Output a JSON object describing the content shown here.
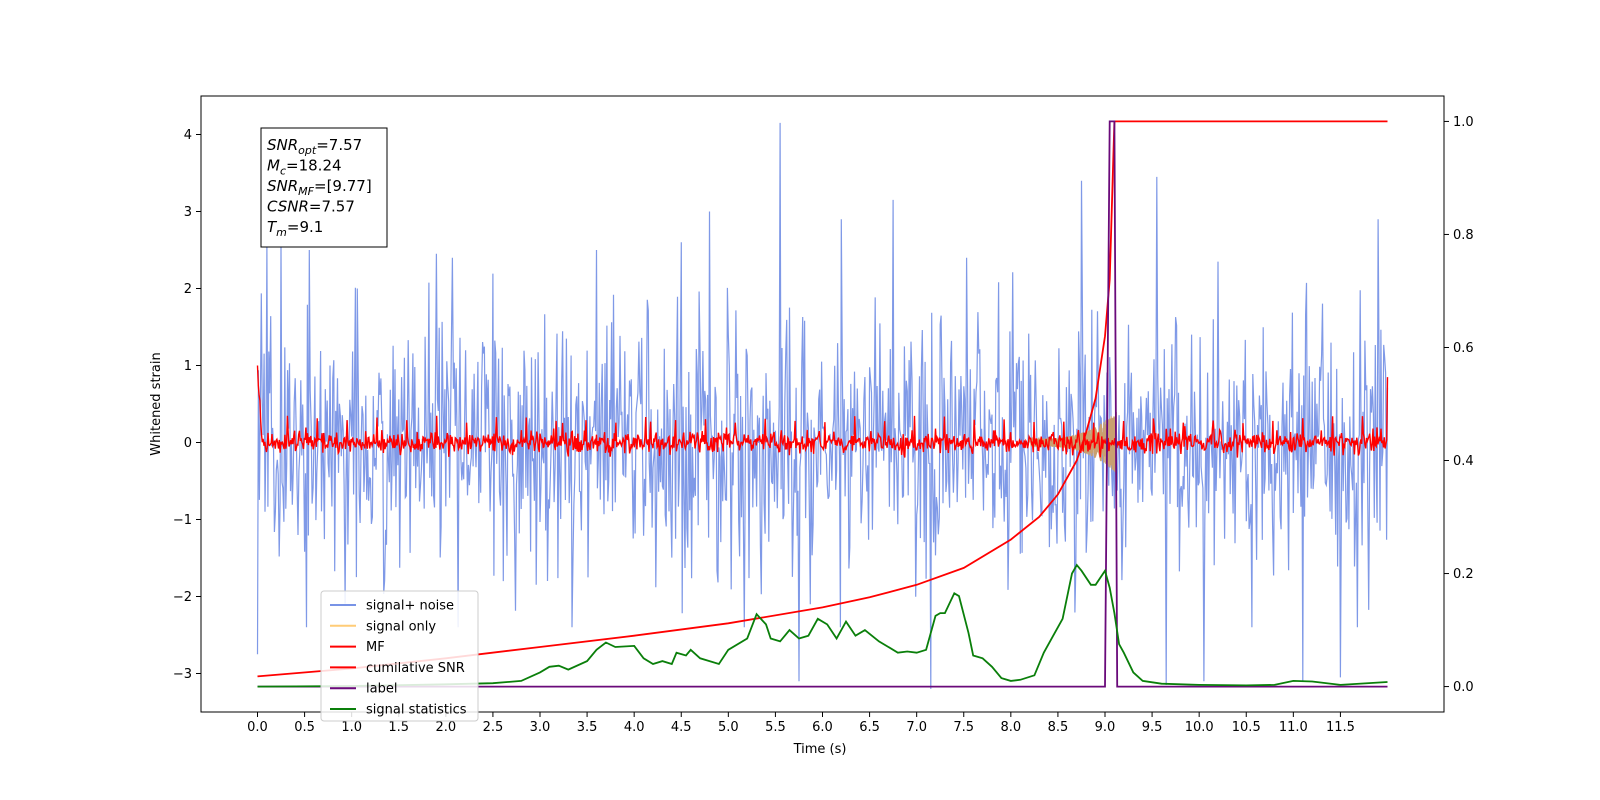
{
  "chart_data": {
    "type": "line",
    "xlabel": "Time (s)",
    "ylabel": "Whitened strain",
    "xlim": [
      -0.6,
      12.6
    ],
    "ylim": [
      -3.5,
      4.5
    ],
    "y2lim": [
      -0.045,
      1.045
    ],
    "x_ticks": [
      0.0,
      0.5,
      1.0,
      1.5,
      2.0,
      2.5,
      3.0,
      3.5,
      4.0,
      4.5,
      5.0,
      5.5,
      6.0,
      6.5,
      7.0,
      7.5,
      8.0,
      8.5,
      9.0,
      9.5,
      10.0,
      10.5,
      11.0,
      11.5
    ],
    "x_tick_labels": [
      "0.0",
      "0.5",
      "1.0",
      "1.5",
      "2.0",
      "2.5",
      "3.0",
      "3.5",
      "4.0",
      "4.5",
      "5.0",
      "5.5",
      "6.0",
      "6.5",
      "7.0",
      "7.5",
      "8.0",
      "8.5",
      "9.0",
      "9.5",
      "10.0",
      "10.5",
      "11.0",
      "11.5"
    ],
    "y_ticks": [
      -3,
      -2,
      -1,
      0,
      1,
      2,
      3,
      4
    ],
    "y_tick_labels": [
      "−3",
      "−2",
      "−1",
      "0",
      "1",
      "2",
      "3",
      "4"
    ],
    "y2_ticks": [
      0.0,
      0.2,
      0.4,
      0.6,
      0.8,
      1.0
    ],
    "y2_tick_labels": [
      "0.0",
      "0.2",
      "0.4",
      "0.6",
      "0.8",
      "1.0"
    ],
    "legend_position": "lower-left",
    "legend": [
      {
        "name": "signal+ noise",
        "color": "#7893e6"
      },
      {
        "name": "signal only",
        "color": "#ffcc77"
      },
      {
        "name": "MF",
        "color": "#ff0000"
      },
      {
        "name": "cumilative SNR",
        "color": "#ff0000"
      },
      {
        "name": "label",
        "color": "#6a0a7a"
      },
      {
        "name": "signal statistics",
        "color": "#0a7f0a"
      }
    ],
    "annotation_lines": [
      {
        "sym": "SNR",
        "sub": "opt",
        "value": "=7.57"
      },
      {
        "sym": "M",
        "sub": "c",
        "value": "=18.24"
      },
      {
        "sym": "SNR",
        "sub": "MF",
        "value": "=[9.77]"
      },
      {
        "sym": "CSNR",
        "sub": "",
        "value": "=7.57"
      },
      {
        "sym": "T",
        "sub": "m",
        "value": "=9.1"
      }
    ],
    "series": [
      {
        "name": "signal+ noise",
        "axis": "left",
        "color": "#7893e6",
        "spikes": [
          {
            "x": 0.0,
            "y": -2.75
          },
          {
            "x": 0.1,
            "y": 2.55
          },
          {
            "x": 0.25,
            "y": 2.6
          },
          {
            "x": 0.55,
            "y": 2.5
          },
          {
            "x": 1.9,
            "y": 2.45
          },
          {
            "x": 3.6,
            "y": 2.5
          },
          {
            "x": 4.5,
            "y": 2.6
          },
          {
            "x": 4.8,
            "y": 3.0
          },
          {
            "x": 5.55,
            "y": 4.15
          },
          {
            "x": 5.75,
            "y": -3.1
          },
          {
            "x": 6.2,
            "y": 2.9
          },
          {
            "x": 6.75,
            "y": 3.15
          },
          {
            "x": 7.15,
            "y": -3.2
          },
          {
            "x": 8.75,
            "y": 3.4
          },
          {
            "x": 9.55,
            "y": 3.45
          },
          {
            "x": 9.65,
            "y": -3.15
          },
          {
            "x": 10.2,
            "y": 2.35
          },
          {
            "x": 10.05,
            "y": -3.1
          },
          {
            "x": 11.1,
            "y": -3.1
          },
          {
            "x": 11.5,
            "y": -3.05
          },
          {
            "x": 11.9,
            "y": 2.9
          }
        ]
      },
      {
        "name": "MF",
        "axis": "left",
        "color": "#ff0000",
        "start_value": 1.0,
        "end_value": 0.85
      },
      {
        "name": "cumilative SNR",
        "axis": "right",
        "color": "#ff0000",
        "x": [
          0.0,
          1.0,
          2.0,
          3.0,
          4.0,
          5.0,
          6.0,
          6.5,
          7.0,
          7.5,
          8.0,
          8.3,
          8.5,
          8.7,
          8.8,
          8.9,
          9.0,
          9.05,
          9.1,
          12.0
        ],
        "y": [
          0.018,
          0.032,
          0.05,
          0.07,
          0.09,
          0.112,
          0.14,
          0.158,
          0.18,
          0.21,
          0.26,
          0.3,
          0.34,
          0.4,
          0.45,
          0.51,
          0.62,
          0.72,
          1.0,
          1.0
        ]
      },
      {
        "name": "label",
        "axis": "right",
        "color": "#6a0a7a",
        "x": [
          0.0,
          9.0,
          9.05,
          9.1,
          9.13,
          12.0
        ],
        "y": [
          0.0,
          0.0,
          1.0,
          1.0,
          0.0,
          0.0
        ]
      },
      {
        "name": "signal statistics",
        "axis": "right",
        "color": "#0a7f0a",
        "x": [
          0.0,
          1.0,
          2.0,
          2.5,
          2.8,
          3.0,
          3.1,
          3.2,
          3.3,
          3.5,
          3.6,
          3.7,
          3.8,
          4.0,
          4.1,
          4.2,
          4.3,
          4.4,
          4.45,
          4.55,
          4.6,
          4.7,
          4.8,
          4.9,
          5.0,
          5.2,
          5.3,
          5.4,
          5.45,
          5.55,
          5.65,
          5.75,
          5.85,
          5.95,
          6.05,
          6.15,
          6.25,
          6.35,
          6.45,
          6.6,
          6.7,
          6.8,
          6.9,
          7.0,
          7.1,
          7.2,
          7.25,
          7.3,
          7.4,
          7.45,
          7.55,
          7.6,
          7.7,
          7.8,
          7.9,
          8.0,
          8.1,
          8.25,
          8.35,
          8.45,
          8.55,
          8.65,
          8.7,
          8.75,
          8.85,
          8.9,
          9.0,
          9.05,
          9.1,
          9.15,
          9.2,
          9.3,
          9.4,
          9.6,
          10.0,
          10.5,
          10.8,
          11.0,
          11.2,
          11.5,
          12.0
        ],
        "y": [
          0.0,
          0.001,
          0.004,
          0.006,
          0.01,
          0.025,
          0.035,
          0.037,
          0.03,
          0.045,
          0.065,
          0.078,
          0.07,
          0.072,
          0.05,
          0.04,
          0.045,
          0.04,
          0.06,
          0.055,
          0.065,
          0.05,
          0.045,
          0.04,
          0.065,
          0.085,
          0.128,
          0.11,
          0.085,
          0.08,
          0.1,
          0.085,
          0.09,
          0.12,
          0.11,
          0.085,
          0.115,
          0.09,
          0.1,
          0.08,
          0.07,
          0.06,
          0.062,
          0.06,
          0.065,
          0.125,
          0.13,
          0.13,
          0.165,
          0.16,
          0.095,
          0.055,
          0.05,
          0.035,
          0.015,
          0.01,
          0.012,
          0.02,
          0.06,
          0.09,
          0.12,
          0.2,
          0.215,
          0.205,
          0.18,
          0.18,
          0.205,
          0.175,
          0.13,
          0.075,
          0.06,
          0.025,
          0.01,
          0.005,
          0.003,
          0.002,
          0.003,
          0.01,
          0.009,
          0.003,
          0.008
        ]
      }
    ]
  }
}
